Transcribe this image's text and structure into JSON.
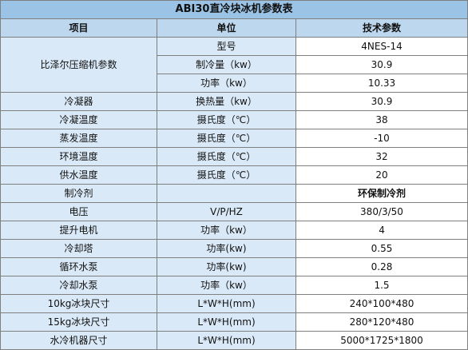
{
  "title": "ABI30直冷块冰机参数表",
  "headers": {
    "item": "项目",
    "unit": "单位",
    "spec": "技术参数"
  },
  "compressor_group": "比泽尔压缩机参数",
  "compressor_rows": [
    {
      "unit": "型号",
      "value": "4NES-14"
    },
    {
      "unit": "制冷量（kw）",
      "value": "30.9"
    },
    {
      "unit": "功率（kw）",
      "value": "10.33"
    }
  ],
  "rows": [
    {
      "item": "冷凝器",
      "unit": "换热量（kw）",
      "value": "30.9"
    },
    {
      "item": "冷凝温度",
      "unit": "摄氏度（℃）",
      "value": "38"
    },
    {
      "item": "蒸发温度",
      "unit": "摄氏度（℃）",
      "value": "-10"
    },
    {
      "item": "环境温度",
      "unit": "摄氏度（℃）",
      "value": "32"
    },
    {
      "item": "供水温度",
      "unit": "摄氏度（℃）",
      "value": "20"
    },
    {
      "item": "制冷剂",
      "unit": "",
      "value": "环保制冷剂",
      "bold_value": true
    },
    {
      "item": "电压",
      "unit": "V/P/HZ",
      "value": "380/3/50"
    },
    {
      "item": "提升电机",
      "unit": "功率（kw）",
      "value": "4"
    },
    {
      "item": "冷却塔",
      "unit": "功率(kw)",
      "value": "0.55"
    },
    {
      "item": "循环水泵",
      "unit": "功率(kw)",
      "value": "0.28"
    },
    {
      "item": "冷却水泵",
      "unit": "功率（kw）",
      "value": "1.5"
    },
    {
      "item": "10kg冰块尺寸",
      "unit": "L*W*H(mm)",
      "value": "240*100*480"
    },
    {
      "item": "15kg冰块尺寸",
      "unit": "L*W*H(mm)",
      "value": "280*120*480"
    },
    {
      "item": "水冷机器尺寸",
      "unit": "L*W*H(mm)",
      "value": "5000*1725*1800"
    }
  ]
}
